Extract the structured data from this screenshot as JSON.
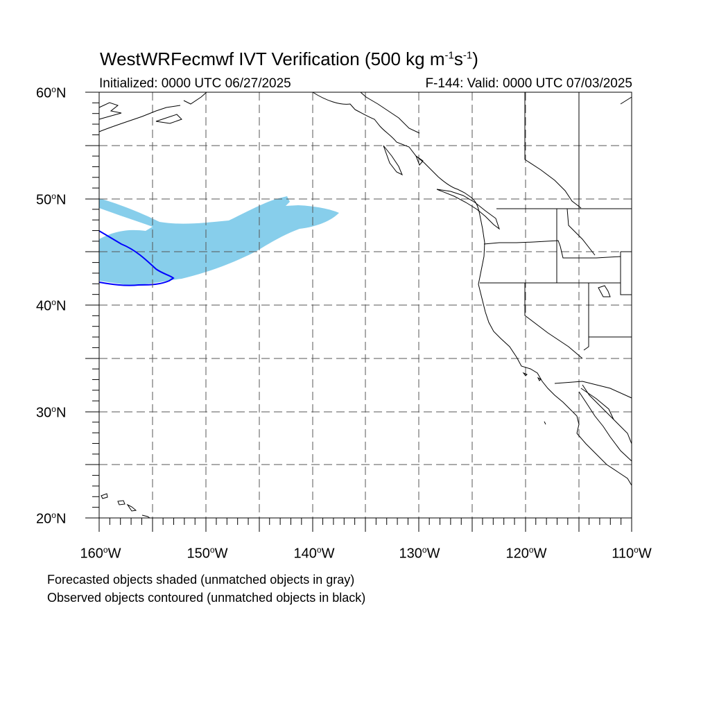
{
  "title": {
    "main": "WestWRFecmwf IVT Verification",
    "units_prefix": " (500 kg m",
    "exp1": "-1",
    "units_mid": "s",
    "exp2": "-1",
    "units_suffix": ")"
  },
  "subtitle": {
    "init": "Initialized: 0000 UTC 06/27/2025",
    "valid": "F-144: Valid: 0000 UTC 07/03/2025"
  },
  "axes": {
    "lat_labels": [
      "60",
      "50",
      "40",
      "30",
      "20"
    ],
    "lat_suffix": "N",
    "lon_labels": [
      "160",
      "150",
      "140",
      "130",
      "120",
      "110"
    ],
    "lon_suffix": "W",
    "deg": "o",
    "lon_range": [
      -160,
      -110
    ],
    "lat_range": [
      20,
      60
    ],
    "grid_spacing_deg": 5,
    "grid_style": "dashed"
  },
  "legend": {
    "line1": "Forecasted objects shaded (unmatched objects in gray)",
    "line2": "Observed objects contoured (unmatched objects in black)"
  },
  "colors": {
    "forecast_fill": "#87ceeb",
    "observed_contour": "#0000ff",
    "coastline": "#000000",
    "grid": "#555555"
  }
}
